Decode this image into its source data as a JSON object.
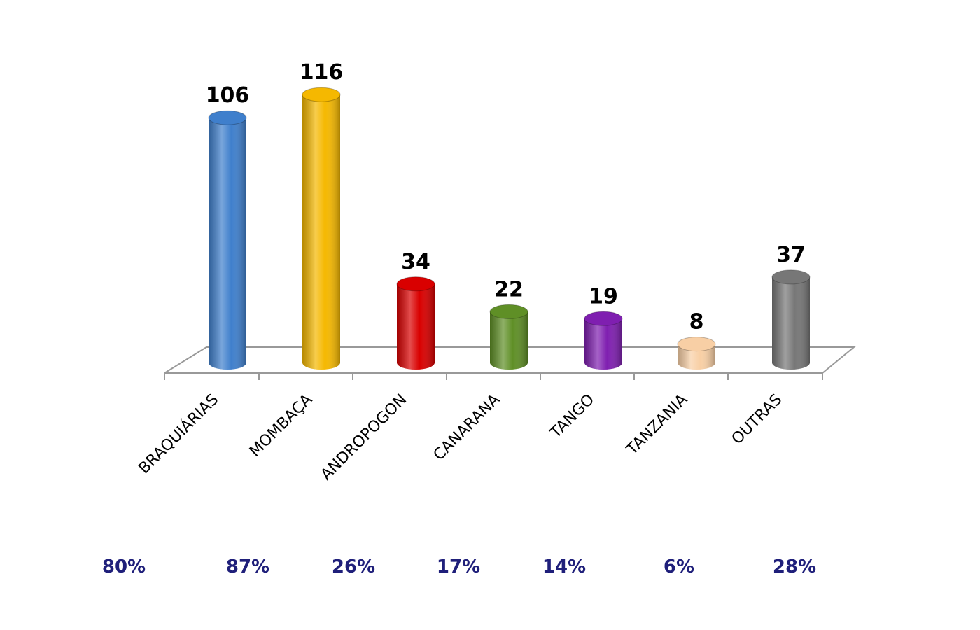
{
  "chart_data": {
    "type": "bar3d",
    "categories": [
      "BRAQUIÁRIAS",
      "MOMBAÇA",
      "ANDROPOGON",
      "CANARANA",
      "TANGO",
      "TANZANIA",
      "OUTRAS"
    ],
    "values": [
      106,
      116,
      34,
      22,
      19,
      8,
      37
    ],
    "colors": [
      "#3f7fcc",
      "#f5b800",
      "#d90000",
      "#5f8f26",
      "#7f1fb0",
      "#f8cfa5",
      "#777777"
    ],
    "percentages": {
      "values": [
        80,
        87,
        26,
        17,
        14,
        6,
        28
      ],
      "value_labels": [
        "80%",
        "87%",
        "26%",
        "17%",
        "14%",
        "6%",
        "28%"
      ]
    }
  }
}
